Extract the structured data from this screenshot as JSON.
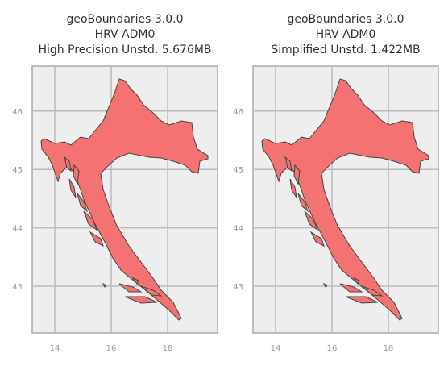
{
  "chart_data": [
    {
      "type": "map",
      "title": [
        "geoBoundaries 3.0.0",
        "HRV ADM0",
        "High Precision Unstd. 5.676MB"
      ],
      "xlim": [
        13.2,
        19.77
      ],
      "ylim": [
        42.2,
        46.77
      ],
      "xticks": [
        14,
        16,
        18
      ],
      "yticks": [
        43,
        44,
        45,
        46
      ],
      "grid": true,
      "color": "#f47272"
    },
    {
      "type": "map",
      "title": [
        "geoBoundaries 3.0.0",
        "HRV ADM0",
        "Simplified Unstd. 1.422MB"
      ],
      "xlim": [
        13.2,
        19.77
      ],
      "ylim": [
        42.2,
        46.77
      ],
      "xticks": [
        14,
        16,
        18
      ],
      "yticks": [
        43,
        44,
        45,
        46
      ],
      "grid": true,
      "color": "#f47272"
    }
  ]
}
